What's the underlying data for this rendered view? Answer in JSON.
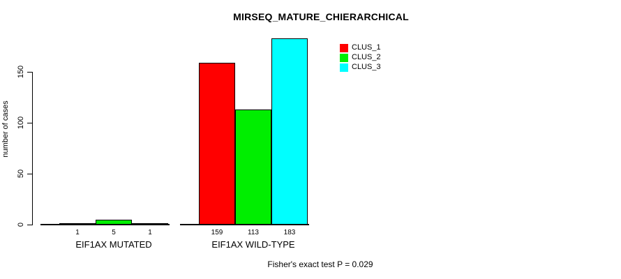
{
  "chart_data": {
    "type": "bar",
    "title": "MIRSEQ_MATURE_CHIERARCHICAL",
    "xlabel": "",
    "ylabel": "number of cases",
    "ylim": [
      0,
      183
    ],
    "yticks": [
      0,
      50,
      100,
      150
    ],
    "grid": false,
    "legend_position": "top-right-inside",
    "categories": [
      "EIF1AX MUTATED",
      "EIF1AX WILD-TYPE"
    ],
    "series": [
      {
        "name": "CLUS_1",
        "color": "#ff0000",
        "values": [
          1,
          159
        ]
      },
      {
        "name": "CLUS_2",
        "color": "#00ee00",
        "values": [
          5,
          113
        ]
      },
      {
        "name": "CLUS_3",
        "color": "#00ffff",
        "values": [
          1,
          183
        ]
      }
    ],
    "bar_labels": [
      [
        "1",
        "5",
        "1"
      ],
      [
        "159",
        "113",
        "183"
      ]
    ],
    "footer": "Fisher's exact test P = 0.029"
  }
}
